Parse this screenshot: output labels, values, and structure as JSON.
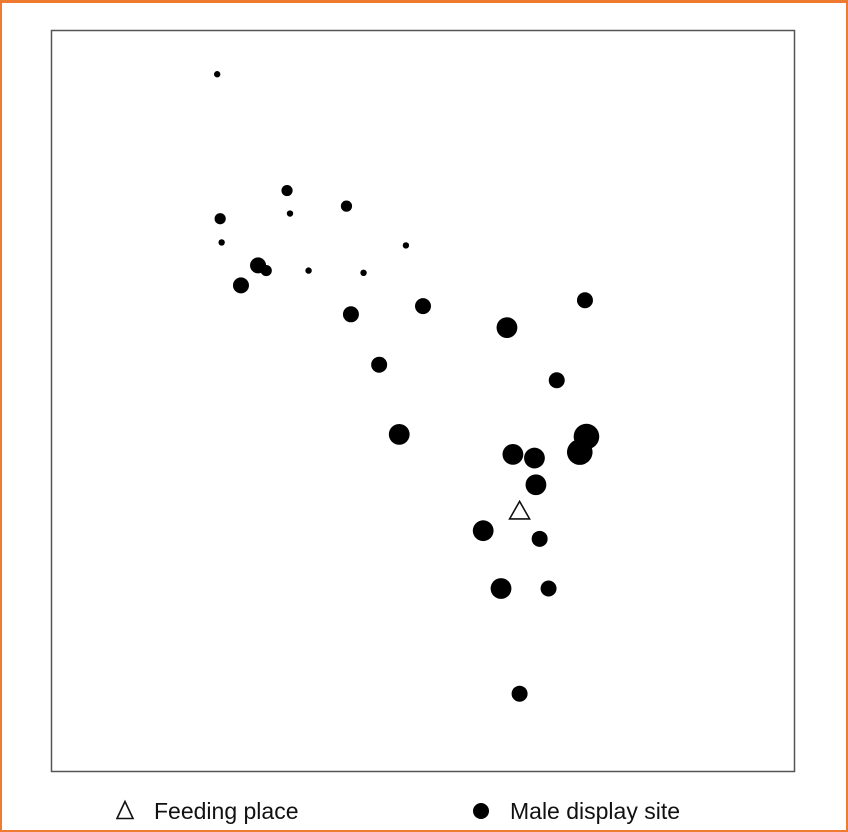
{
  "chart_data": {
    "type": "scatter",
    "title": "",
    "xlabel": "",
    "ylabel": "",
    "xlim": [
      0,
      100
    ],
    "ylim": [
      0,
      100
    ],
    "grid": false,
    "axes_ticks": false,
    "legend_placement": "bottom",
    "colors": {
      "frame": "#ee7b30",
      "plot_border": "#555555",
      "marker": "#000000"
    },
    "series": [
      {
        "name": "Feeding place",
        "marker": "open-triangle",
        "points": [
          {
            "x": 63.0,
            "y": 35.1
          }
        ]
      },
      {
        "name": "Male display site",
        "marker": "filled-circle",
        "points": [
          {
            "x": 22.3,
            "y": 94.1,
            "size": 1
          },
          {
            "x": 31.7,
            "y": 78.4,
            "size": 2
          },
          {
            "x": 39.7,
            "y": 76.3,
            "size": 2
          },
          {
            "x": 22.7,
            "y": 74.6,
            "size": 2
          },
          {
            "x": 32.1,
            "y": 75.3,
            "size": 1
          },
          {
            "x": 22.9,
            "y": 71.4,
            "size": 1
          },
          {
            "x": 47.7,
            "y": 71.0,
            "size": 1
          },
          {
            "x": 27.8,
            "y": 68.3,
            "size": 3
          },
          {
            "x": 28.9,
            "y": 67.6,
            "size": 2
          },
          {
            "x": 34.6,
            "y": 67.6,
            "size": 1
          },
          {
            "x": 42.0,
            "y": 67.3,
            "size": 1
          },
          {
            "x": 25.5,
            "y": 65.6,
            "size": 3
          },
          {
            "x": 71.8,
            "y": 63.6,
            "size": 3
          },
          {
            "x": 50.0,
            "y": 62.8,
            "size": 3
          },
          {
            "x": 40.3,
            "y": 61.7,
            "size": 3
          },
          {
            "x": 61.3,
            "y": 59.9,
            "size": 4
          },
          {
            "x": 44.1,
            "y": 54.9,
            "size": 3
          },
          {
            "x": 68.0,
            "y": 52.8,
            "size": 3
          },
          {
            "x": 46.8,
            "y": 45.5,
            "size": 4
          },
          {
            "x": 72.0,
            "y": 45.2,
            "size": 5
          },
          {
            "x": 71.1,
            "y": 43.1,
            "size": 5
          },
          {
            "x": 62.1,
            "y": 42.8,
            "size": 4
          },
          {
            "x": 65.0,
            "y": 42.3,
            "size": 4
          },
          {
            "x": 65.2,
            "y": 38.7,
            "size": 4
          },
          {
            "x": 58.1,
            "y": 32.5,
            "size": 4
          },
          {
            "x": 65.7,
            "y": 31.4,
            "size": 3
          },
          {
            "x": 60.5,
            "y": 24.7,
            "size": 4
          },
          {
            "x": 66.9,
            "y": 24.7,
            "size": 3
          },
          {
            "x": 63.0,
            "y": 10.5,
            "size": 3
          }
        ]
      }
    ]
  },
  "legend": {
    "feeding_label": "Feeding place",
    "display_label": "Male display site",
    "triangle_icon": "open-triangle-icon",
    "circle_icon": "filled-circle-icon"
  }
}
